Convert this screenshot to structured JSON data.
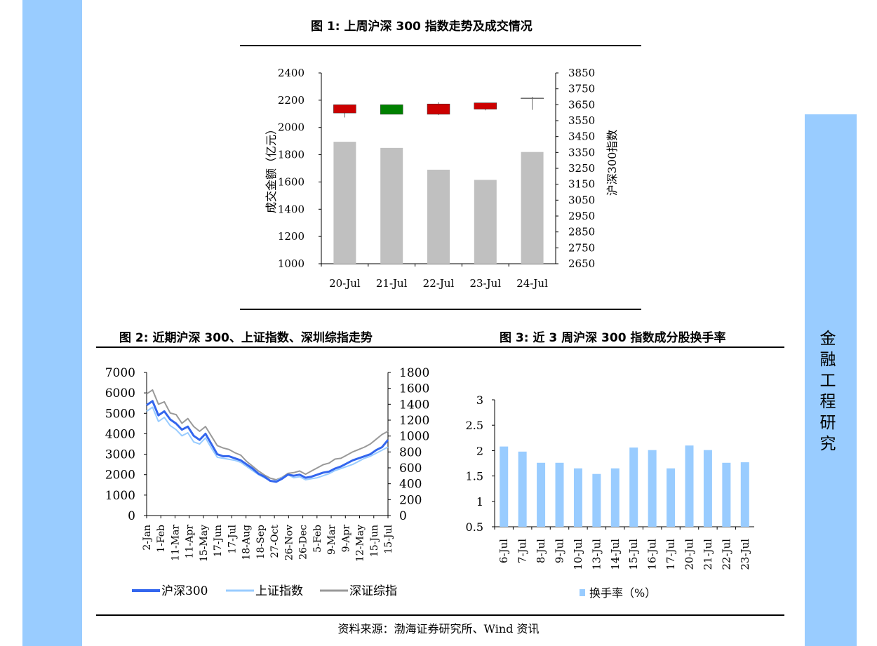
{
  "sidebar": {
    "label_chars": [
      "金",
      "融",
      "工",
      "程",
      "研",
      "究"
    ]
  },
  "fig1": {
    "title": "图 1:  上周沪深 300 指数走势及成交情况"
  },
  "fig2": {
    "title": "图 2:  近期沪深 300、上证指数、深圳综指走势"
  },
  "fig3": {
    "title": "图 3:  近 3 周沪深 300 指数成分股换手率"
  },
  "source": "资料来源：渤海证券研究所、Wind 资讯",
  "chart_data": [
    {
      "type": "bar",
      "ylabel": "成交金额（亿元）",
      "y2label": "沪深300指数",
      "categories": [
        "20-Jul",
        "21-Jul",
        "22-Jul",
        "23-Jul",
        "24-Jul"
      ],
      "ylim": [
        1000,
        2400
      ],
      "y_ticks": [
        1000,
        1200,
        1400,
        1600,
        1800,
        2000,
        2200,
        2400
      ],
      "y2lim": [
        2650,
        3850
      ],
      "y2_ticks": [
        2650,
        2750,
        2850,
        2950,
        3050,
        3150,
        3250,
        3350,
        3450,
        3550,
        3650,
        3750,
        3850
      ],
      "values": [
        1895,
        1850,
        1690,
        1615,
        1820
      ],
      "candles": [
        {
          "open": 3598,
          "close": 3650,
          "high": 3650,
          "low": 3570,
          "color": "#cc0000"
        },
        {
          "open": 3650,
          "close": 3590,
          "high": 3650,
          "low": 3590,
          "color": "#008000"
        },
        {
          "open": 3590,
          "close": 3655,
          "high": 3665,
          "low": 3585,
          "color": "#cc0000"
        },
        {
          "open": 3622,
          "close": 3662,
          "high": 3662,
          "low": 3615,
          "color": "#cc0000"
        },
        {
          "open": 3688,
          "close": 3692,
          "high": 3700,
          "low": 3618,
          "color": "#aaaaaa"
        }
      ],
      "bar_color": "#c0c0c0"
    },
    {
      "type": "line",
      "x_ticks": [
        "2-Jan",
        "1-Feb",
        "11-Mar",
        "11-Apr",
        "15-May",
        "17-Jun",
        "17-Jul",
        "18-Aug",
        "18-Sep",
        "27-Oct",
        "26-Nov",
        "26-Dec",
        "5-Feb",
        "9-Mar",
        "9-Apr",
        "12-May",
        "15-Jun",
        "15-Jul"
      ],
      "ylim": [
        0,
        7000
      ],
      "y_ticks": [
        0,
        1000,
        2000,
        3000,
        4000,
        5000,
        6000,
        7000
      ],
      "y2lim": [
        0,
        1800
      ],
      "y2_ticks": [
        0,
        200,
        400,
        600,
        800,
        1000,
        1200,
        1400,
        1600,
        1800
      ],
      "series": [
        {
          "name": "沪深300",
          "axis": "left",
          "color": "#3366ee",
          "width": 3,
          "values": [
            5400,
            5600,
            4900,
            5100,
            4700,
            4500,
            4200,
            4350,
            3900,
            3700,
            4000,
            3500,
            3000,
            2900,
            2900,
            2800,
            2700,
            2500,
            2300,
            2050,
            1900,
            1700,
            1650,
            1800,
            2000,
            1950,
            2000,
            1850,
            1900,
            2000,
            2100,
            2150,
            2300,
            2400,
            2550,
            2700,
            2800,
            2900,
            3000,
            3200,
            3350,
            3700
          ]
        },
        {
          "name": "上证指数",
          "axis": "left",
          "color": "#99ccff",
          "width": 2,
          "values": [
            5100,
            5300,
            4600,
            4800,
            4400,
            4200,
            3900,
            4050,
            3600,
            3500,
            3800,
            3300,
            2850,
            2800,
            2750,
            2700,
            2600,
            2400,
            2200,
            2000,
            1850,
            1700,
            1700,
            1850,
            2000,
            1850,
            1900,
            1750,
            1800,
            1850,
            1950,
            2050,
            2200,
            2300,
            2400,
            2500,
            2650,
            2800,
            2900,
            3050,
            3200,
            3350
          ]
        },
        {
          "name": "深证综指",
          "axis": "right",
          "color": "#999999",
          "width": 2,
          "values": [
            1530,
            1580,
            1400,
            1430,
            1290,
            1270,
            1160,
            1220,
            1120,
            1060,
            1120,
            1000,
            880,
            850,
            830,
            790,
            760,
            680,
            620,
            560,
            510,
            470,
            450,
            480,
            530,
            540,
            560,
            520,
            560,
            600,
            640,
            660,
            710,
            720,
            760,
            800,
            830,
            860,
            900,
            960,
            1020,
            1060
          ]
        }
      ]
    },
    {
      "type": "bar",
      "categories": [
        "6-Jul",
        "7-Jul",
        "8-Jul",
        "9-Jul",
        "10-Jul",
        "13-Jul",
        "14-Jul",
        "15-Jul",
        "16-Jul",
        "17-Jul",
        "20-Jul",
        "21-Jul",
        "22-Jul",
        "23-Jul"
      ],
      "ylim": [
        0.5,
        3
      ],
      "y_ticks": [
        "0.5",
        "1",
        "1.5",
        "2",
        "2.5",
        "3"
      ],
      "series": [
        {
          "name": "换手率（%）",
          "color": "#99ccff",
          "values": [
            2.08,
            1.98,
            1.76,
            1.76,
            1.65,
            1.54,
            1.65,
            2.06,
            2.01,
            1.65,
            2.1,
            2.01,
            1.76,
            1.77
          ]
        }
      ]
    }
  ]
}
